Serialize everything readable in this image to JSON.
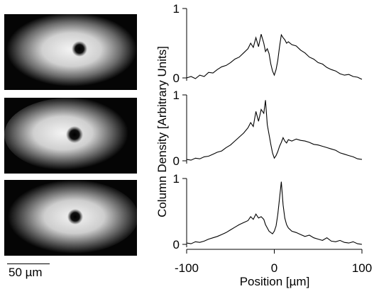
{
  "scale_bar": {
    "label": "50 µm"
  },
  "chart_data": {
    "type": "line",
    "xlabel": "Position [µm]",
    "ylabel": "Column Density [Arbitrary Units]",
    "xlim": [
      -100,
      100
    ],
    "ylim": [
      0,
      1
    ],
    "x_ticks": [
      "-100",
      "0",
      "100"
    ],
    "y_ticks": [
      "0",
      "1"
    ],
    "grid": false,
    "panels": [
      {
        "x": [
          -100,
          -95,
          -90,
          -85,
          -80,
          -75,
          -70,
          -65,
          -60,
          -55,
          -50,
          -45,
          -40,
          -35,
          -30,
          -27,
          -24,
          -21,
          -18,
          -15,
          -12,
          -10,
          -8,
          -6,
          -4,
          -2,
          0,
          2,
          4,
          6,
          8,
          10,
          12,
          14,
          16,
          20,
          25,
          30,
          35,
          40,
          45,
          50,
          55,
          60,
          65,
          70,
          75,
          80,
          85,
          90,
          95,
          100
        ],
        "y": [
          0,
          0.02,
          -0.01,
          0.04,
          0.02,
          0.08,
          0.07,
          0.12,
          0.16,
          0.18,
          0.22,
          0.27,
          0.3,
          0.36,
          0.42,
          0.5,
          0.44,
          0.58,
          0.45,
          0.63,
          0.5,
          0.38,
          0.42,
          0.35,
          0.2,
          0.1,
          0.04,
          0.12,
          0.25,
          0.45,
          0.62,
          0.58,
          0.55,
          0.5,
          0.52,
          0.48,
          0.46,
          0.4,
          0.36,
          0.3,
          0.27,
          0.22,
          0.2,
          0.15,
          0.12,
          0.1,
          0.06,
          0.04,
          0.05,
          0.02,
          0.01,
          -0.02
        ]
      },
      {
        "x": [
          -100,
          -95,
          -90,
          -85,
          -80,
          -75,
          -70,
          -65,
          -60,
          -55,
          -50,
          -45,
          -40,
          -35,
          -30,
          -27,
          -24,
          -21,
          -18,
          -15,
          -12,
          -10,
          -8,
          -6,
          -4,
          -2,
          0,
          2,
          4,
          6,
          8,
          10,
          12,
          14,
          16,
          20,
          25,
          30,
          35,
          40,
          45,
          50,
          55,
          60,
          65,
          70,
          75,
          80,
          85,
          90,
          95,
          100
        ],
        "y": [
          0.02,
          0.01,
          0.04,
          0.03,
          0.06,
          0.07,
          0.1,
          0.13,
          0.15,
          0.2,
          0.24,
          0.3,
          0.36,
          0.42,
          0.5,
          0.58,
          0.52,
          0.75,
          0.6,
          0.78,
          0.72,
          0.92,
          0.55,
          0.4,
          0.25,
          0.12,
          0.04,
          0.08,
          0.14,
          0.22,
          0.28,
          0.35,
          0.3,
          0.27,
          0.32,
          0.3,
          0.33,
          0.31,
          0.3,
          0.28,
          0.25,
          0.24,
          0.22,
          0.2,
          0.18,
          0.16,
          0.12,
          0.1,
          0.08,
          0.06,
          0.03,
          0.02
        ]
      },
      {
        "x": [
          -100,
          -95,
          -90,
          -85,
          -80,
          -75,
          -70,
          -65,
          -60,
          -55,
          -50,
          -45,
          -40,
          -35,
          -30,
          -27,
          -24,
          -21,
          -18,
          -15,
          -12,
          -10,
          -8,
          -6,
          -4,
          -2,
          0,
          2,
          4,
          6,
          8,
          10,
          12,
          14,
          16,
          20,
          25,
          30,
          35,
          40,
          45,
          50,
          55,
          60,
          65,
          70,
          75,
          80,
          85,
          90,
          95,
          100
        ],
        "y": [
          0.02,
          0.01,
          0.04,
          0.03,
          0.05,
          0.08,
          0.1,
          0.12,
          0.15,
          0.18,
          0.22,
          0.26,
          0.3,
          0.33,
          0.36,
          0.42,
          0.38,
          0.46,
          0.4,
          0.42,
          0.38,
          0.3,
          0.25,
          0.2,
          0.18,
          0.16,
          0.2,
          0.28,
          0.45,
          0.7,
          0.95,
          0.6,
          0.4,
          0.3,
          0.25,
          0.2,
          0.18,
          0.15,
          0.12,
          0.14,
          0.1,
          0.08,
          0.06,
          0.1,
          0.05,
          0.04,
          0.06,
          0.03,
          0.02,
          0.04,
          0.01,
          0.0
        ]
      }
    ]
  }
}
